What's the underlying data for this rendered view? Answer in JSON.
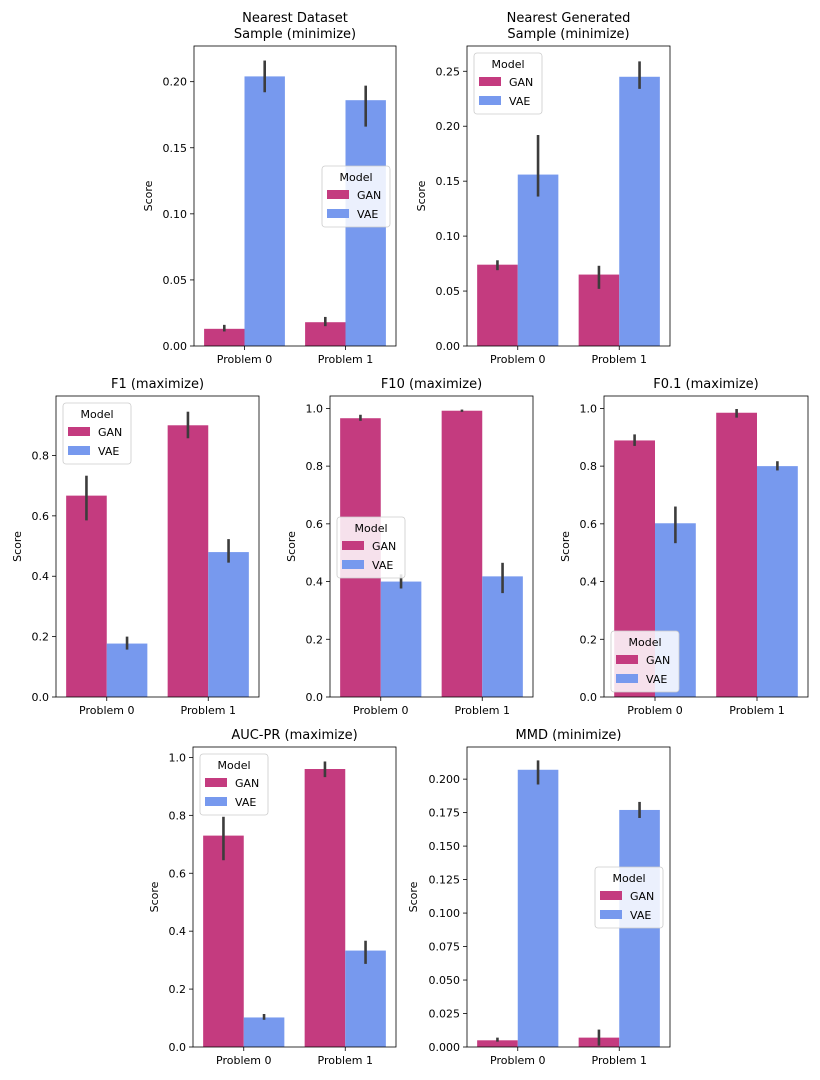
{
  "chart_data": [
    {
      "type": "bar",
      "title": [
        "Nearest Dataset",
        "Sample (minimize)"
      ],
      "ylabel": "Score",
      "categories": [
        "Problem 0",
        "Problem 1"
      ],
      "ylim": [
        0,
        0.227
      ],
      "yticks": [
        0.0,
        0.05,
        0.1,
        0.15,
        0.2
      ],
      "yticklabels": [
        "0.00",
        "0.05",
        "0.10",
        "0.15",
        "0.20"
      ],
      "legend": {
        "title": "Model",
        "placement": "center-right"
      },
      "series": [
        {
          "name": "GAN",
          "color": "#c43b7f",
          "values": [
            0.013,
            0.018
          ],
          "err_low": [
            0.011,
            0.015
          ],
          "err_high": [
            0.016,
            0.022
          ]
        },
        {
          "name": "VAE",
          "color": "#7799ee",
          "values": [
            0.204,
            0.186
          ],
          "err_low": [
            0.192,
            0.166
          ],
          "err_high": [
            0.216,
            0.197
          ]
        }
      ]
    },
    {
      "type": "bar",
      "title": [
        "Nearest Generated",
        "Sample (minimize)"
      ],
      "ylabel": "Score",
      "categories": [
        "Problem 0",
        "Problem 1"
      ],
      "ylim": [
        0,
        0.273
      ],
      "yticks": [
        0.0,
        0.05,
        0.1,
        0.15,
        0.2,
        0.25
      ],
      "yticklabels": [
        "0.00",
        "0.05",
        "0.10",
        "0.15",
        "0.20",
        "0.25"
      ],
      "legend": {
        "title": "Model",
        "placement": "upper-left"
      },
      "series": [
        {
          "name": "GAN",
          "color": "#c43b7f",
          "values": [
            0.074,
            0.065
          ],
          "err_low": [
            0.069,
            0.052
          ],
          "err_high": [
            0.078,
            0.073
          ]
        },
        {
          "name": "VAE",
          "color": "#7799ee",
          "values": [
            0.156,
            0.245
          ],
          "err_low": [
            0.136,
            0.234
          ],
          "err_high": [
            0.192,
            0.259
          ]
        }
      ]
    },
    {
      "type": "bar",
      "title": [
        "F1 (maximize)"
      ],
      "ylabel": "Score",
      "categories": [
        "Problem 0",
        "Problem 1"
      ],
      "ylim": [
        0,
        0.997
      ],
      "yticks": [
        0.0,
        0.2,
        0.4,
        0.6,
        0.8
      ],
      "yticklabels": [
        "0.0",
        "0.2",
        "0.4",
        "0.6",
        "0.8"
      ],
      "legend": {
        "title": "Model",
        "placement": "upper-left"
      },
      "series": [
        {
          "name": "GAN",
          "color": "#c43b7f",
          "values": [
            0.667,
            0.9
          ],
          "err_low": [
            0.585,
            0.857
          ],
          "err_high": [
            0.733,
            0.945
          ]
        },
        {
          "name": "VAE",
          "color": "#7799ee",
          "values": [
            0.177,
            0.48
          ],
          "err_low": [
            0.157,
            0.445
          ],
          "err_high": [
            0.2,
            0.523
          ]
        }
      ]
    },
    {
      "type": "bar",
      "title": [
        "F10 (maximize)"
      ],
      "ylabel": "Score",
      "categories": [
        "Problem 0",
        "Problem 1"
      ],
      "ylim": [
        0,
        1.043
      ],
      "yticks": [
        0.0,
        0.2,
        0.4,
        0.6,
        0.8,
        1.0
      ],
      "yticklabels": [
        "0.0",
        "0.2",
        "0.4",
        "0.6",
        "0.8",
        "1.0"
      ],
      "legend": {
        "title": "Model",
        "placement": "center-left"
      },
      "series": [
        {
          "name": "GAN",
          "color": "#c43b7f",
          "values": [
            0.966,
            0.992
          ],
          "err_low": [
            0.957,
            0.988
          ],
          "err_high": [
            0.978,
            0.996
          ]
        },
        {
          "name": "VAE",
          "color": "#7799ee",
          "values": [
            0.4,
            0.418
          ],
          "err_low": [
            0.376,
            0.36
          ],
          "err_high": [
            0.425,
            0.465
          ]
        }
      ]
    },
    {
      "type": "bar",
      "title": [
        "F0.1 (maximize)"
      ],
      "ylabel": "Score",
      "categories": [
        "Problem 0",
        "Problem 1"
      ],
      "ylim": [
        0,
        1.043
      ],
      "yticks": [
        0.0,
        0.2,
        0.4,
        0.6,
        0.8,
        1.0
      ],
      "yticklabels": [
        "0.0",
        "0.2",
        "0.4",
        "0.6",
        "0.8",
        "1.0"
      ],
      "legend": {
        "title": "Model",
        "placement": "lower-left"
      },
      "series": [
        {
          "name": "GAN",
          "color": "#c43b7f",
          "values": [
            0.889,
            0.985
          ],
          "err_low": [
            0.87,
            0.968
          ],
          "err_high": [
            0.91,
            0.998
          ]
        },
        {
          "name": "VAE",
          "color": "#7799ee",
          "values": [
            0.602,
            0.8
          ],
          "err_low": [
            0.533,
            0.785
          ],
          "err_high": [
            0.66,
            0.817
          ]
        }
      ]
    },
    {
      "type": "bar",
      "title": [
        "AUC-PR (maximize)"
      ],
      "ylabel": "Score",
      "categories": [
        "Problem 0",
        "Problem 1"
      ],
      "ylim": [
        0,
        1.036
      ],
      "yticks": [
        0.0,
        0.2,
        0.4,
        0.6,
        0.8,
        1.0
      ],
      "yticklabels": [
        "0.0",
        "0.2",
        "0.4",
        "0.6",
        "0.8",
        "1.0"
      ],
      "legend": {
        "title": "Model",
        "placement": "upper-left"
      },
      "series": [
        {
          "name": "GAN",
          "color": "#c43b7f",
          "values": [
            0.73,
            0.96
          ],
          "err_low": [
            0.645,
            0.932
          ],
          "err_high": [
            0.795,
            0.986
          ]
        },
        {
          "name": "VAE",
          "color": "#7799ee",
          "values": [
            0.102,
            0.333
          ],
          "err_low": [
            0.094,
            0.287
          ],
          "err_high": [
            0.114,
            0.367
          ]
        }
      ]
    },
    {
      "type": "bar",
      "title": [
        "MMD (minimize)"
      ],
      "ylabel": "Score",
      "categories": [
        "Problem 0",
        "Problem 1"
      ],
      "ylim": [
        0,
        0.224
      ],
      "yticks": [
        0.0,
        0.025,
        0.05,
        0.075,
        0.1,
        0.125,
        0.15,
        0.175,
        0.2
      ],
      "yticklabels": [
        "0.000",
        "0.025",
        "0.050",
        "0.075",
        "0.100",
        "0.125",
        "0.150",
        "0.175",
        "0.200"
      ],
      "legend": {
        "title": "Model",
        "placement": "center-right"
      },
      "series": [
        {
          "name": "GAN",
          "color": "#c43b7f",
          "values": [
            0.005,
            0.007
          ],
          "err_low": [
            0.004,
            0.001
          ],
          "err_high": [
            0.007,
            0.013
          ]
        },
        {
          "name": "VAE",
          "color": "#7799ee",
          "values": [
            0.207,
            0.177
          ],
          "err_low": [
            0.196,
            0.171
          ],
          "err_high": [
            0.214,
            0.183
          ]
        }
      ]
    }
  ]
}
